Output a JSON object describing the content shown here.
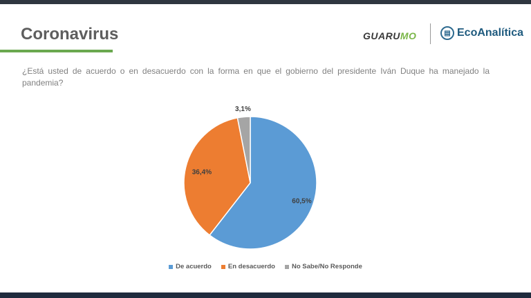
{
  "header": {
    "title": "Coronavirus",
    "logo_left_a": "GUARU",
    "logo_left_b": "MO",
    "logo_right": "EcoAnalítica"
  },
  "question": "¿Está usted de acuerdo o en desacuerdo con la forma en que el gobierno del presidente Iván Duque ha manejado la pandemia?",
  "chart_data": {
    "type": "pie",
    "title": "",
    "slices": [
      {
        "name": "De acuerdo",
        "value": 60.5,
        "label": "60,5%",
        "color": "#5b9bd5"
      },
      {
        "name": "En desacuerdo",
        "value": 36.4,
        "label": "36,4%",
        "color": "#ed7d31"
      },
      {
        "name": "No Sabe/No Responde",
        "value": 3.1,
        "label": "3,1%",
        "color": "#a5a5a5"
      }
    ],
    "legend_position": "bottom"
  }
}
